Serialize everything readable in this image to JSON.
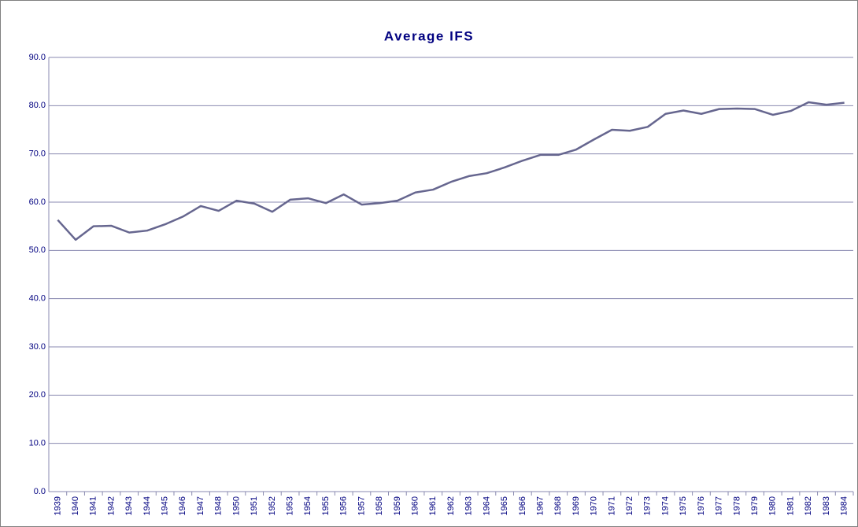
{
  "chart_data": {
    "type": "line",
    "title": "Average IFS",
    "categories": [
      "1939",
      "1940",
      "1941",
      "1942",
      "1943",
      "1944",
      "1945",
      "1946",
      "1947",
      "1948",
      "1950",
      "1951",
      "1952",
      "1953",
      "1954",
      "1955",
      "1956",
      "1957",
      "1958",
      "1959",
      "1960",
      "1961",
      "1962",
      "1963",
      "1964",
      "1965",
      "1966",
      "1967",
      "1968",
      "1969",
      "1970",
      "1971",
      "1972",
      "1973",
      "1974",
      "1975",
      "1976",
      "1977",
      "1978",
      "1979",
      "1980",
      "1981",
      "1982",
      "1983",
      "1984"
    ],
    "series": [
      {
        "name": "Average IFS",
        "color": "#66668f",
        "values": [
          56.3,
          52.2,
          55.0,
          55.1,
          53.7,
          54.1,
          55.4,
          57.0,
          59.2,
          58.2,
          60.3,
          59.7,
          58.0,
          60.5,
          60.8,
          59.8,
          61.6,
          59.5,
          59.8,
          60.3,
          62.0,
          62.6,
          64.2,
          65.4,
          66.0,
          67.2,
          68.6,
          69.8,
          69.8,
          70.9,
          73.0,
          75.0,
          74.8,
          75.6,
          78.3,
          79.0,
          78.3,
          79.3,
          79.4,
          79.3,
          78.1,
          78.9,
          80.7,
          80.2,
          80.6
        ]
      }
    ],
    "ylim": [
      0,
      90
    ],
    "yticks": [
      {
        "value": 0,
        "label": "0.0"
      },
      {
        "value": 10,
        "label": "10.0"
      },
      {
        "value": 20,
        "label": "20.0"
      },
      {
        "value": 30,
        "label": "30.0"
      },
      {
        "value": 40,
        "label": "40.0"
      },
      {
        "value": 50,
        "label": "50.0"
      },
      {
        "value": 60,
        "label": "60.0"
      },
      {
        "value": 70,
        "label": "70.0"
      },
      {
        "value": 80,
        "label": "80.0"
      },
      {
        "value": 90,
        "label": "90.0"
      }
    ],
    "grid": true
  }
}
